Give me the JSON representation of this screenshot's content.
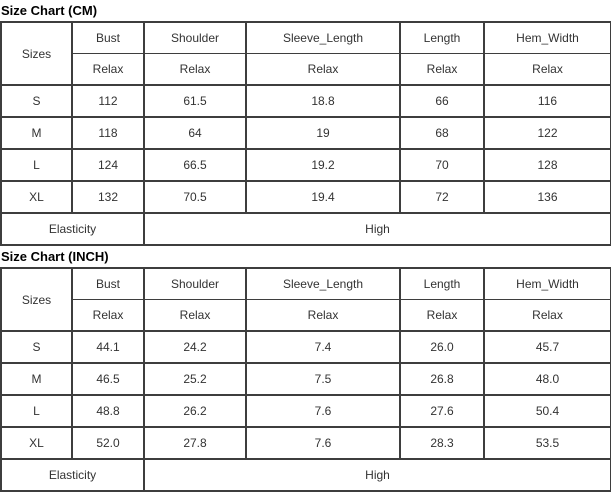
{
  "colors": {
    "border": "#3e3e3e",
    "cell_text": "#333333",
    "title_text": "#000000",
    "background": "#ffffff"
  },
  "chart_data": [
    {
      "type": "table",
      "title": "Size Chart (CM)",
      "corner_header": "Sizes",
      "column_headers": [
        "Bust",
        "Shoulder",
        "Sleeve_Length",
        "Length",
        "Hem_Width"
      ],
      "subheader_row": [
        "Relax",
        "Relax",
        "Relax",
        "Relax",
        "Relax"
      ],
      "row_labels": [
        "S",
        "M",
        "L",
        "XL"
      ],
      "rows": [
        [
          "112",
          "61.5",
          "18.8",
          "66",
          "116"
        ],
        [
          "118",
          "64",
          "19",
          "68",
          "122"
        ],
        [
          "124",
          "66.5",
          "19.2",
          "70",
          "128"
        ],
        [
          "132",
          "70.5",
          "19.4",
          "72",
          "136"
        ]
      ],
      "footer_label": "Elasticity",
      "footer_value": "High"
    },
    {
      "type": "table",
      "title": "Size Chart (INCH)",
      "corner_header": "Sizes",
      "column_headers": [
        "Bust",
        "Shoulder",
        "Sleeve_Length",
        "Length",
        "Hem_Width"
      ],
      "subheader_row": [
        "Relax",
        "Relax",
        "Relax",
        "Relax",
        "Relax"
      ],
      "row_labels": [
        "S",
        "M",
        "L",
        "XL"
      ],
      "rows": [
        [
          "44.1",
          "24.2",
          "7.4",
          "26.0",
          "45.7"
        ],
        [
          "46.5",
          "25.2",
          "7.5",
          "26.8",
          "48.0"
        ],
        [
          "48.8",
          "26.2",
          "7.6",
          "27.6",
          "50.4"
        ],
        [
          "52.0",
          "27.8",
          "7.6",
          "28.3",
          "53.5"
        ]
      ],
      "footer_label": "Elasticity",
      "footer_value": "High"
    }
  ]
}
